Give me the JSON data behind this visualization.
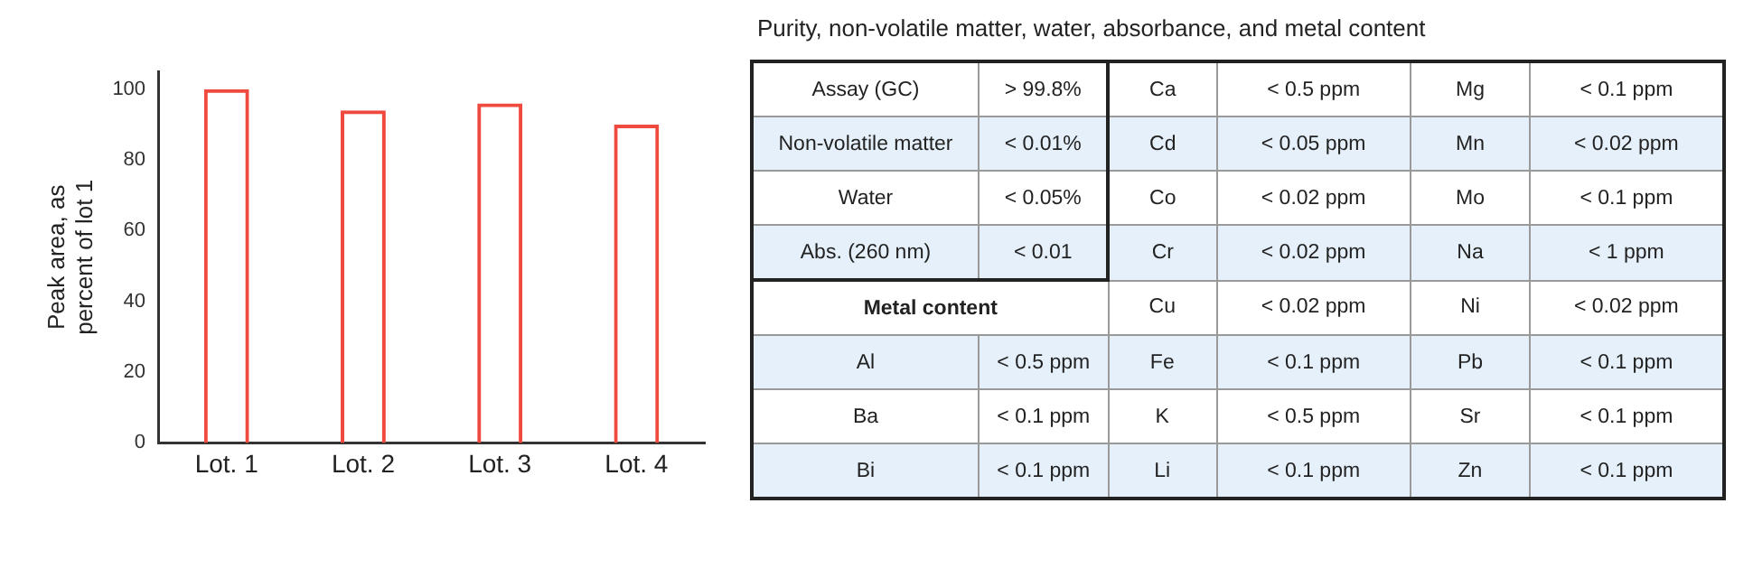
{
  "chart_data": [
    {
      "type": "bar",
      "categories": [
        "Lot. 1",
        "Lot. 2",
        "Lot. 3",
        "Lot. 4"
      ],
      "values": [
        100,
        94,
        96,
        90
      ],
      "color": "#f04a3e",
      "ylabel": "Peak area, as percent of lot 1",
      "ylim": [
        0,
        105
      ],
      "yticks": [
        0,
        20,
        40,
        60,
        80,
        100
      ],
      "grid": false,
      "legend": false
    },
    {
      "type": "other",
      "title": "Purity, non-volatile matter, water, absorbance, and metal content",
      "annotations": [
        "Assay (GC)",
        "> 99.8%",
        "Ca",
        "< 0.5 ppm",
        "Mg",
        "< 0.1 ppm",
        "Non-volatile matter",
        "< 0.01%",
        "Cd",
        "< 0.05 ppm",
        "Mn",
        "< 0.02 ppm",
        "Water",
        "< 0.05%",
        "Co",
        "< 0.02 ppm",
        "Mo",
        "< 0.1 ppm",
        "Abs. (260 nm)",
        "< 0.01",
        "Cr",
        "< 0.02 ppm",
        "Na",
        "< 1 ppm",
        "Metal content",
        "Cu",
        "< 0.02 ppm",
        "Ni",
        "< 0.02 ppm",
        "Al",
        "< 0.5 ppm",
        "Fe",
        "< 0.1 ppm",
        "Pb",
        "< 0.1 ppm",
        "Ba",
        "< 0.1 ppm",
        "K",
        "< 0.5 ppm",
        "Sr",
        "< 0.1 ppm",
        "Bi",
        "< 0.1 ppm",
        "Li",
        "< 0.1 ppm",
        "Zn",
        "< 0.1 ppm"
      ]
    }
  ]
}
